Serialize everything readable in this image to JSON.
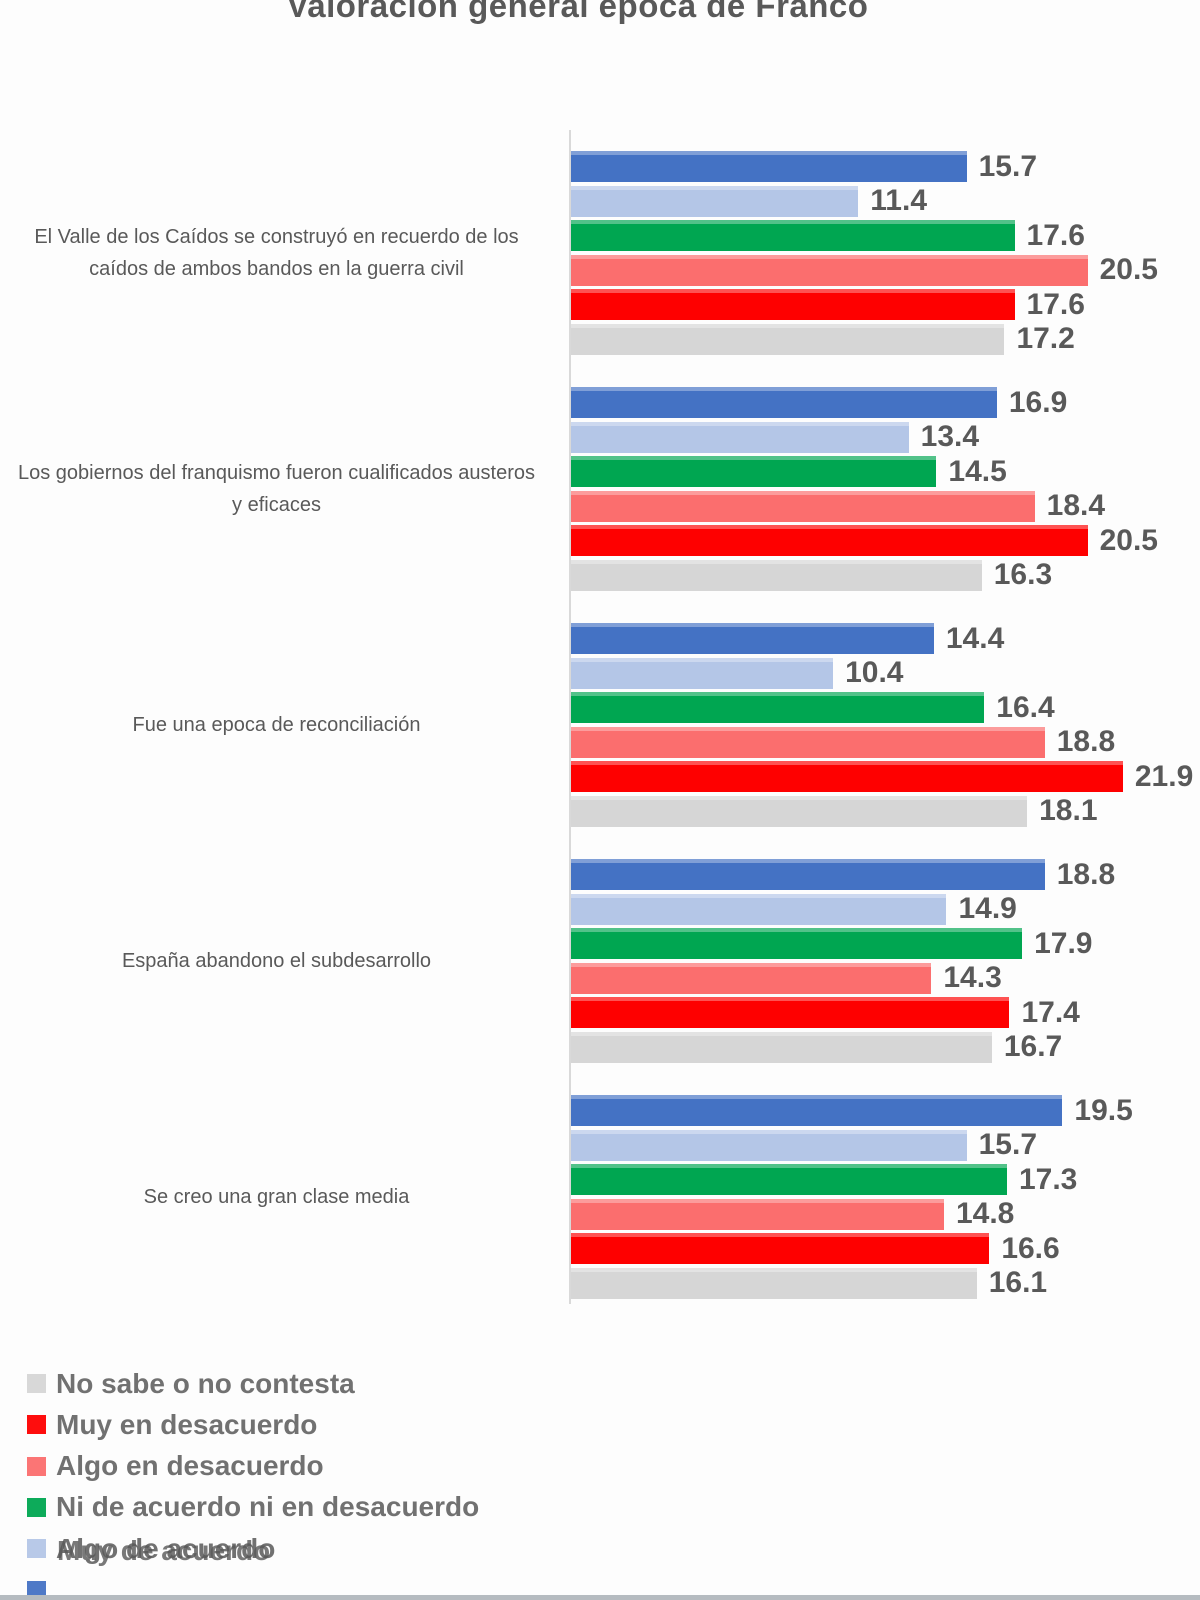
{
  "chart_data": {
    "type": "bar",
    "orientation": "horizontal",
    "title": "Valoración general época de Franco",
    "categories": [
      "El Valle de los Caídos se construyó en recuerdo de los caídos de ambos bandos en la guerra civil",
      "Los gobiernos del franquismo fueron cualificados austeros y eficaces",
      "Fue una epoca de reconciliación",
      "España abandono el subdesarrollo",
      "Se creo una gran clase media"
    ],
    "series": [
      {
        "name": "Muy de acuerdo",
        "color": "#4472c4",
        "values": [
          15.7,
          16.9,
          14.4,
          18.8,
          19.5
        ]
      },
      {
        "name": "Algo de acuerdo",
        "color": "#b4c6e7",
        "values": [
          11.4,
          13.4,
          10.4,
          14.9,
          15.7
        ]
      },
      {
        "name": "Ni de acuerdo ni en desacuerdo",
        "color": "#00a651",
        "values": [
          17.6,
          14.5,
          16.4,
          17.9,
          17.3
        ]
      },
      {
        "name": "Algo en desacuerdo",
        "color": "#fb6e6e",
        "values": [
          20.5,
          18.4,
          18.8,
          14.3,
          14.8
        ]
      },
      {
        "name": "Muy en desacuerdo",
        "color": "#fe0000",
        "values": [
          17.6,
          20.5,
          21.9,
          17.4,
          16.6
        ]
      },
      {
        "name": "No sabe o no contesta",
        "color": "#d6d6d6",
        "values": [
          17.2,
          16.3,
          18.1,
          16.7,
          16.1
        ]
      }
    ],
    "value_labels": true,
    "value_label_decimals": 1,
    "xlim": [
      0,
      25
    ],
    "grid": false,
    "axis_tick_labels": "none",
    "legend_position": "bottom-left"
  },
  "legend": {
    "items": [
      {
        "label": "No sabe o no contesta",
        "color": "#d6d6d6"
      },
      {
        "label": "Muy en desacuerdo",
        "color": "#fe0000"
      },
      {
        "label": "Algo en desacuerdo",
        "color": "#fb6e6e"
      },
      {
        "label": "Ni de acuerdo ni en desacuerdo",
        "color": "#00a651"
      },
      {
        "label": "Algo de acuerdo",
        "ghost_label": "Muy de acuerdo",
        "color": "#b4c6e7"
      },
      {
        "label": "",
        "color": "#4472c4"
      }
    ]
  },
  "colors": {
    "text": "#595959",
    "axis_line": "#d9d9d9",
    "bottom_strip": "#b5bbc0",
    "background": "#fdfdfd"
  }
}
